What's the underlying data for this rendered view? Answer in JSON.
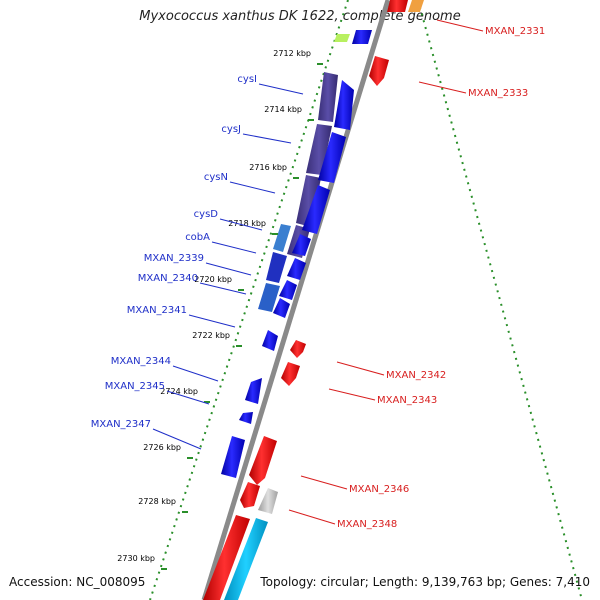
{
  "title": "Myxococcus xanthus DK 1622, complete genome",
  "footer": {
    "accession": "Accession: NC_008095",
    "summary": "Topology: circular; Length: 9,139,763 bp; Genes: 7,410"
  },
  "ticks": [
    "2712 kbp",
    "2714 kbp",
    "2716 kbp",
    "2718 kbp",
    "2720 kbp",
    "2722 kbp",
    "2724 kbp",
    "2726 kbp",
    "2728 kbp",
    "2730 kbp"
  ],
  "left_labels": [
    "cysI",
    "cysJ",
    "cysN",
    "cysD",
    "cobA",
    "MXAN_2339",
    "MXAN_2340",
    "MXAN_2341",
    "MXAN_2344",
    "MXAN_2345",
    "MXAN_2347"
  ],
  "right_labels": [
    "MXAN_2331",
    "MXAN_2333",
    "MXAN_2342",
    "MXAN_2343",
    "MXAN_2346",
    "MXAN_2348"
  ],
  "colors": {
    "forward_gene": "#e8141b",
    "reverse_gene": "#1a1ae6",
    "cds_feature": "#4a3f8c",
    "label_left": "#1f2fc8",
    "label_right": "#d81f1f",
    "tick_green": "#2a8f2a",
    "backbone": "#7f7f7f"
  }
}
